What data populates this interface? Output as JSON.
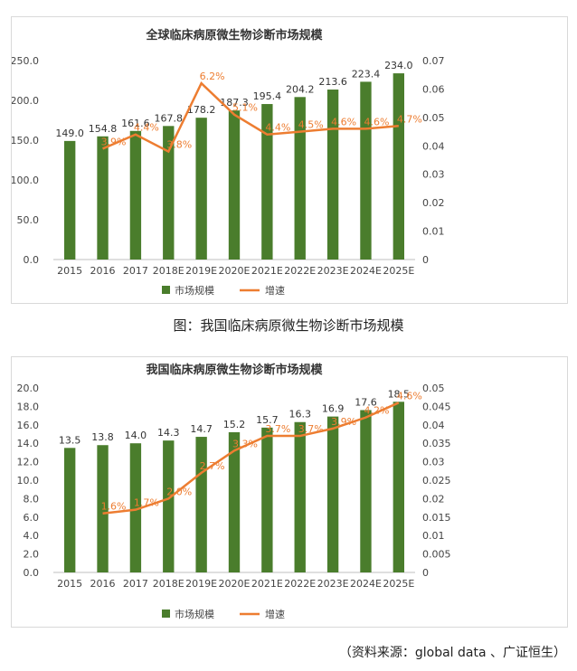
{
  "caption_1": "图：我国临床病原微生物诊断市场规模",
  "source": "（资料来源：global data 、广证恒生）",
  "colors": {
    "bar": "#4a7d2c",
    "line": "#ed7d31"
  },
  "chart_data": [
    {
      "type": "bar+line",
      "title": "全球临床病原微生物诊断市场规模",
      "categories": [
        "2015",
        "2016",
        "2017",
        "2018E",
        "2019E",
        "2020E",
        "2021E",
        "2022E",
        "2023E",
        "2024E",
        "2025E"
      ],
      "series": [
        {
          "name": "市场规模",
          "type": "bar",
          "axis": "left",
          "values": [
            149.0,
            154.8,
            161.6,
            167.8,
            178.2,
            187.3,
            195.4,
            204.2,
            213.6,
            223.4,
            234.0
          ],
          "labels": [
            "149.0",
            "154.8",
            "161.6",
            "167.8",
            "178.2",
            "187.3",
            "195.4",
            "204.2",
            "213.6",
            "223.4",
            "234.0"
          ]
        },
        {
          "name": "增速",
          "type": "line",
          "axis": "right",
          "values": [
            null,
            0.039,
            0.044,
            0.038,
            0.062,
            0.051,
            0.044,
            0.045,
            0.046,
            0.046,
            0.047
          ],
          "labels": [
            "",
            "3.9%",
            "4.4%",
            "3.8%",
            "6.2%",
            "5.1%",
            "4.4%",
            "4.5%",
            "4.6%",
            "4.6%",
            "4.7%"
          ]
        }
      ],
      "left_axis": {
        "min": 0,
        "max": 250,
        "ticks": [
          "0.0",
          "50.0",
          "100.0",
          "150.0",
          "200.0",
          "250.0"
        ]
      },
      "right_axis": {
        "min": 0,
        "max": 0.07,
        "ticks": [
          "0",
          "0.01",
          "0.02",
          "0.03",
          "0.04",
          "0.05",
          "0.06",
          "0.07"
        ]
      },
      "legend": [
        "市场规模",
        "增速"
      ]
    },
    {
      "type": "bar+line",
      "title": "我国临床病原微生物诊断市场规模",
      "categories": [
        "2015",
        "2016",
        "2017",
        "2018E",
        "2019E",
        "2020E",
        "2021E",
        "2022E",
        "2023E",
        "2024E",
        "2025E"
      ],
      "series": [
        {
          "name": "市场规模",
          "type": "bar",
          "axis": "left",
          "values": [
            13.5,
            13.8,
            14.0,
            14.3,
            14.7,
            15.2,
            15.7,
            16.3,
            16.9,
            17.6,
            18.5
          ],
          "labels": [
            "13.5",
            "13.8",
            "14.0",
            "14.3",
            "14.7",
            "15.2",
            "15.7",
            "16.3",
            "16.9",
            "17.6",
            "18.5"
          ]
        },
        {
          "name": "增速",
          "type": "line",
          "axis": "right",
          "values": [
            null,
            0.016,
            0.017,
            0.02,
            0.027,
            0.033,
            0.037,
            0.037,
            0.039,
            0.042,
            0.046
          ],
          "labels": [
            "",
            "1.6%",
            "1.7%",
            "2.0%",
            "2.7%",
            "3.3%",
            "3.7%",
            "3.7%",
            "3.9%",
            "4.2%",
            "4.6%"
          ]
        }
      ],
      "left_axis": {
        "min": 0,
        "max": 20,
        "ticks": [
          "0.0",
          "2.0",
          "4.0",
          "6.0",
          "8.0",
          "10.0",
          "12.0",
          "14.0",
          "16.0",
          "18.0",
          "20.0"
        ]
      },
      "right_axis": {
        "min": 0,
        "max": 0.05,
        "ticks": [
          "0",
          "0.005",
          "0.01",
          "0.015",
          "0.02",
          "0.025",
          "0.03",
          "0.035",
          "0.04",
          "0.045",
          "0.05"
        ]
      },
      "legend": [
        "市场规模",
        "增速"
      ]
    }
  ]
}
